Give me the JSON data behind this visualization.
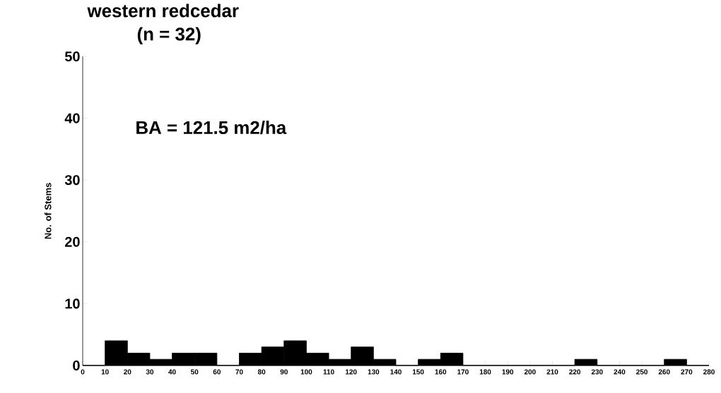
{
  "chart_data": {
    "type": "histogram",
    "title": "western redcedar",
    "subtitle": "(n = 32)",
    "ylabel": "No. of Stems",
    "annotations": [
      "BA = 121.5 m2/ha"
    ],
    "bins": [
      0,
      10,
      20,
      30,
      40,
      50,
      60,
      70,
      80,
      90,
      100,
      110,
      120,
      130,
      140,
      150,
      160,
      170,
      180,
      190,
      200,
      210,
      220,
      230,
      240,
      250,
      260,
      270,
      280
    ],
    "values": [
      0,
      4,
      2,
      1,
      2,
      2,
      0,
      2,
      3,
      4,
      2,
      1,
      3,
      1,
      0,
      1,
      2,
      0,
      0,
      0,
      0,
      0,
      1,
      0,
      0,
      0,
      1,
      0
    ],
    "color": "#000000",
    "xlim": [
      0,
      280
    ],
    "ylim": [
      0,
      50
    ],
    "xticks": [
      0,
      10,
      20,
      30,
      40,
      50,
      60,
      70,
      80,
      90,
      100,
      110,
      120,
      130,
      140,
      150,
      160,
      170,
      180,
      190,
      200,
      210,
      220,
      230,
      240,
      250,
      260,
      270,
      280
    ],
    "yticks": [
      0,
      10,
      20,
      30,
      40,
      50
    ],
    "grid": false
  }
}
